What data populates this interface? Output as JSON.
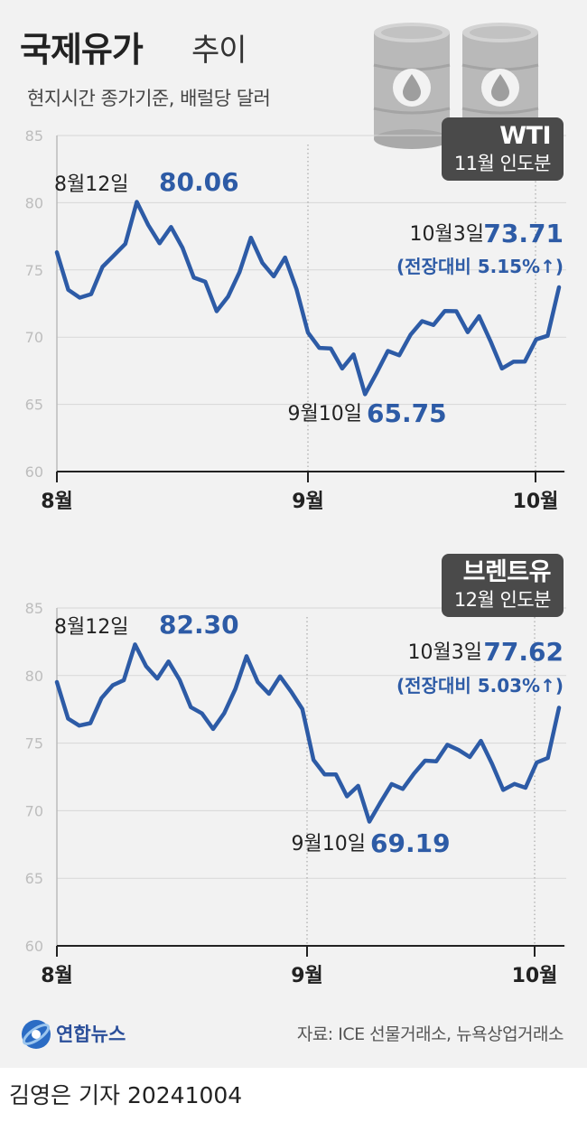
{
  "header": {
    "title_main": "국제유가",
    "title_sub": "추이",
    "subtitle": "현지시간 종가기준, 배럴당 달러"
  },
  "colors": {
    "line": "#2d5ba6",
    "badge": "#4a4a4a",
    "background": "#f2f2f2"
  },
  "icons": [
    "oil-barrel-icon",
    "oil-barrel-icon"
  ],
  "wti": {
    "badge_title": "WTI",
    "badge_sub": "11월 인도분",
    "peak_date": "8월12일",
    "peak_value": "80.06",
    "low_date": "9월10일",
    "low_value": "65.75",
    "last_date": "10월3일",
    "last_value": "73.71",
    "last_change": "(전장대비 5.15%↑)"
  },
  "brent": {
    "badge_title": "브렌트유",
    "badge_sub": "12월 인도분",
    "peak_date": "8월12일",
    "peak_value": "82.30",
    "low_date": "9월10일",
    "low_value": "69.19",
    "last_date": "10월3일",
    "last_value": "77.62",
    "last_change": "(전장대비 5.03%↑)"
  },
  "chart_data": [
    {
      "type": "line",
      "series": [
        {
          "name": "WTI",
          "values": [
            76.31,
            73.52,
            72.94,
            73.2,
            75.23,
            76.08,
            76.94,
            80.06,
            78.35,
            76.98,
            78.19,
            76.66,
            74.43,
            74.12,
            71.93,
            73.01,
            74.83,
            77.4,
            75.53,
            74.52,
            75.92,
            73.55,
            70.34,
            69.2,
            69.15,
            67.67,
            68.71,
            65.75,
            67.31,
            68.97,
            68.65,
            70.19,
            71.19,
            70.91,
            71.95,
            71.93,
            70.37,
            71.56,
            69.69,
            67.67,
            68.17,
            68.18,
            69.83,
            70.1,
            73.71
          ]
        }
      ],
      "x_labels": [
        "8월",
        "9월",
        "10월"
      ],
      "ylim": [
        60,
        85
      ],
      "yticks": [
        60,
        65,
        70,
        75,
        80,
        85
      ]
    },
    {
      "type": "line",
      "series": [
        {
          "name": "브렌트유",
          "values": [
            79.52,
            76.81,
            76.3,
            76.48,
            78.33,
            79.28,
            79.66,
            82.3,
            80.69,
            79.77,
            81.04,
            79.68,
            77.66,
            77.2,
            76.05,
            77.22,
            79.02,
            81.43,
            79.52,
            78.65,
            79.94,
            78.8,
            77.52,
            73.75,
            72.69,
            72.69,
            71.06,
            71.84,
            69.19,
            70.61,
            71.97,
            71.61,
            72.75,
            73.7,
            73.65,
            74.88,
            74.49,
            73.97,
            75.17,
            73.46,
            71.54,
            71.98,
            71.7,
            73.56,
            73.9,
            77.62
          ]
        }
      ],
      "x_labels": [
        "8월",
        "9월",
        "10월"
      ],
      "ylim": [
        60,
        85
      ],
      "yticks": [
        60,
        65,
        70,
        75,
        80,
        85
      ]
    }
  ],
  "footer": {
    "logo_text": "연합뉴스",
    "source": "자료: ICE 선물거래소, 뉴욕상업거래소",
    "credit": "김영은 기자",
    "date": "20241004"
  }
}
